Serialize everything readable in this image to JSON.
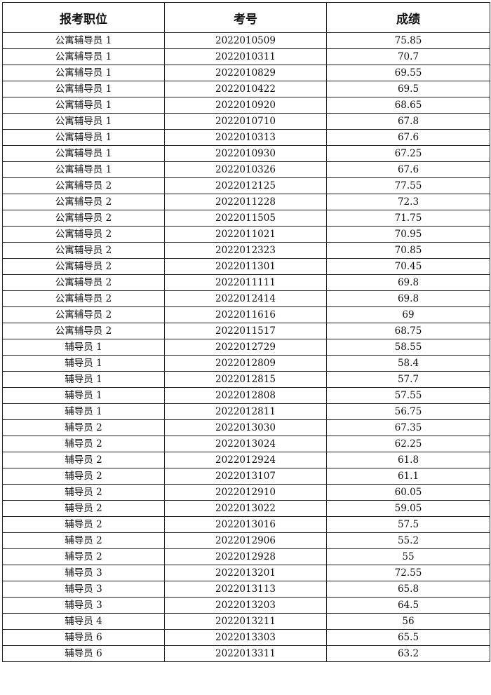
{
  "table": {
    "headers": [
      "报考职位",
      "考号",
      "成绩"
    ],
    "rows": [
      [
        "公寓辅导员 1",
        "2022010509",
        "75.85"
      ],
      [
        "公寓辅导员 1",
        "2022010311",
        "70.7"
      ],
      [
        "公寓辅导员 1",
        "2022010829",
        "69.55"
      ],
      [
        "公寓辅导员 1",
        "2022010422",
        "69.5"
      ],
      [
        "公寓辅导员 1",
        "2022010920",
        "68.65"
      ],
      [
        "公寓辅导员 1",
        "2022010710",
        "67.8"
      ],
      [
        "公寓辅导员 1",
        "2022010313",
        "67.6"
      ],
      [
        "公寓辅导员 1",
        "2022010930",
        "67.25"
      ],
      [
        "公寓辅导员 1",
        "2022010326",
        "67.6"
      ],
      [
        "公寓辅导员 2",
        "2022012125",
        "77.55"
      ],
      [
        "公寓辅导员 2",
        "2022011228",
        "72.3"
      ],
      [
        "公寓辅导员 2",
        "2022011505",
        "71.75"
      ],
      [
        "公寓辅导员 2",
        "2022011021",
        "70.95"
      ],
      [
        "公寓辅导员 2",
        "2022012323",
        "70.85"
      ],
      [
        "公寓辅导员 2",
        "2022011301",
        "70.45"
      ],
      [
        "公寓辅导员 2",
        "2022011111",
        "69.8"
      ],
      [
        "公寓辅导员 2",
        "2022012414",
        "69.8"
      ],
      [
        "公寓辅导员 2",
        "2022011616",
        "69"
      ],
      [
        "公寓辅导员 2",
        "2022011517",
        "68.75"
      ],
      [
        "辅导员 1",
        "2022012729",
        "58.55"
      ],
      [
        "辅导员 1",
        "2022012809",
        "58.4"
      ],
      [
        "辅导员 1",
        "2022012815",
        "57.7"
      ],
      [
        "辅导员 1",
        "2022012808",
        "57.55"
      ],
      [
        "辅导员 1",
        "2022012811",
        "56.75"
      ],
      [
        "辅导员 2",
        "2022013030",
        "67.35"
      ],
      [
        "辅导员 2",
        "2022013024",
        "62.25"
      ],
      [
        "辅导员 2",
        "2022012924",
        "61.8"
      ],
      [
        "辅导员 2",
        "2022013107",
        "61.1"
      ],
      [
        "辅导员 2",
        "2022012910",
        "60.05"
      ],
      [
        "辅导员 2",
        "2022013022",
        "59.05"
      ],
      [
        "辅导员 2",
        "2022013016",
        "57.5"
      ],
      [
        "辅导员 2",
        "2022012906",
        "55.2"
      ],
      [
        "辅导员 2",
        "2022012928",
        "55"
      ],
      [
        "辅导员 3",
        "2022013201",
        "72.55"
      ],
      [
        "辅导员 3",
        "2022013113",
        "65.8"
      ],
      [
        "辅导员 3",
        "2022013203",
        "64.5"
      ],
      [
        "辅导员 4",
        "2022013211",
        "56"
      ],
      [
        "辅导员 6",
        "2022013303",
        "65.5"
      ],
      [
        "辅导员 6",
        "2022013311",
        "63.2"
      ]
    ]
  }
}
